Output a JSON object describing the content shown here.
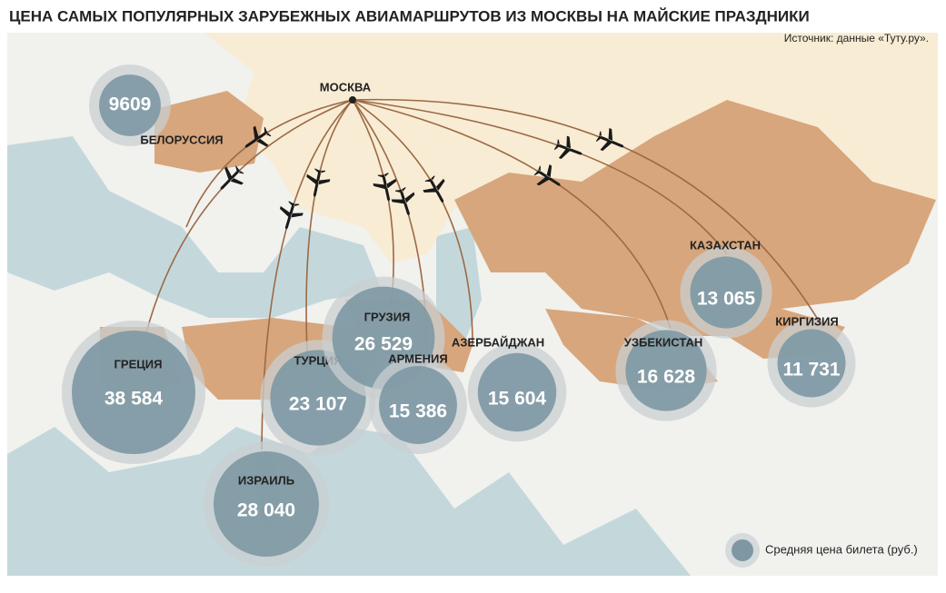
{
  "title": "ЦЕНА САМЫХ ПОПУЛЯРНЫХ ЗАРУБЕЖНЫХ АВИАМАРШРУТОВ ИЗ МОСКВЫ НА МАЙСКИЕ ПРАЗДНИКИ",
  "source": "Источник: данные «Туту.ру».",
  "origin": "МОСКВА",
  "legend": "Средняя цена билета (руб.)",
  "destinations": [
    {
      "name": "БЕЛОРУССИЯ",
      "value": 9609,
      "label": "9609"
    },
    {
      "name": "ГРЕЦИЯ",
      "value": 38584,
      "label": "38 584"
    },
    {
      "name": "ИЗРАИЛЬ",
      "value": 28040,
      "label": "28 040"
    },
    {
      "name": "ТУРЦИЯ",
      "value": 23107,
      "label": "23 107"
    },
    {
      "name": "ГРУЗИЯ",
      "value": 26529,
      "label": "26 529"
    },
    {
      "name": "АРМЕНИЯ",
      "value": 15386,
      "label": "15 386"
    },
    {
      "name": "АЗЕРБАЙДЖАН",
      "value": 15604,
      "label": "15 604"
    },
    {
      "name": "УЗБЕКИСТАН",
      "value": 16628,
      "label": "16 628"
    },
    {
      "name": "КАЗАХСТАН",
      "value": 13065,
      "label": "13 065"
    },
    {
      "name": "КИРГИЗИЯ",
      "value": 11731,
      "label": "11 731"
    }
  ]
}
